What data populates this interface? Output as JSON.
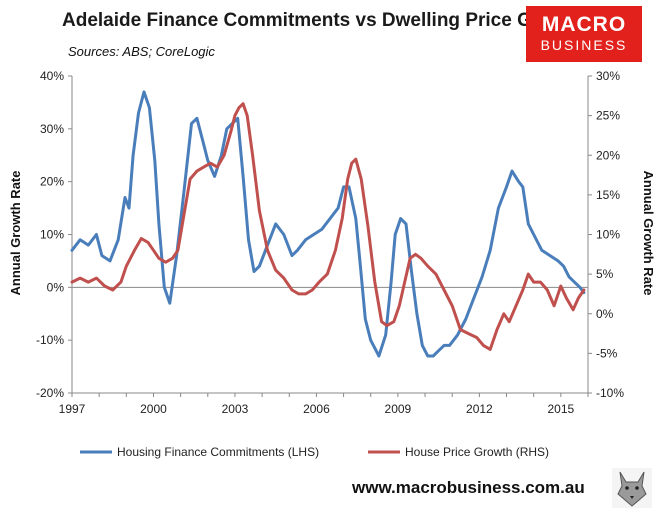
{
  "header": {
    "title": "Adelaide Finance Commitments vs Dwelling Price Growth",
    "subtitle": "Sources: ABS; CoreLogic",
    "logo_line1": "MACRO",
    "logo_line2": "BUSINESS"
  },
  "footer": {
    "url": "www.macrobusiness.com.au"
  },
  "colors": {
    "lhs_series": "#4a7ebb",
    "rhs_series": "#c0504d",
    "axis": "#888888"
  },
  "chart_data": {
    "type": "line",
    "title": "Adelaide Finance Commitments vs Dwelling Price Growth",
    "subtitle": "Sources: ABS; CoreLogic",
    "ylabel_left": "Annual Growth Rate",
    "ylabel_right": "Annual Growth Rate",
    "ylim_left": [
      -20,
      40
    ],
    "ylim_right": [
      -10,
      30
    ],
    "xlim": [
      1997,
      2016
    ],
    "x_ticks": [
      "1997",
      "2000",
      "2003",
      "2006",
      "2009",
      "2012",
      "2015"
    ],
    "y_ticks_left": [
      "40%",
      "30%",
      "20%",
      "10%",
      "0%",
      "-10%",
      "-20%"
    ],
    "y_ticks_right": [
      "30%",
      "25%",
      "20%",
      "15%",
      "10%",
      "5%",
      "0%",
      "-5%",
      "-10%"
    ],
    "grid": false,
    "legend_position": "bottom",
    "series": [
      {
        "name": "Housing Finance Commitments (LHS)",
        "axis": "left",
        "color": "#4a7ebb",
        "x": [
          1997.0,
          1997.3,
          1997.6,
          1997.9,
          1998.1,
          1998.4,
          1998.7,
          1998.95,
          1999.1,
          1999.25,
          1999.45,
          1999.65,
          1999.85,
          2000.05,
          2000.2,
          2000.4,
          2000.6,
          2000.85,
          2001.1,
          2001.4,
          2001.6,
          2001.8,
          2002.0,
          2002.25,
          2002.5,
          2002.7,
          2002.9,
          2003.1,
          2003.3,
          2003.5,
          2003.7,
          2003.9,
          2004.2,
          2004.5,
          2004.8,
          2005.1,
          2005.3,
          2005.6,
          2005.9,
          2006.2,
          2006.5,
          2006.8,
          2007.0,
          2007.2,
          2007.45,
          2007.6,
          2007.8,
          2008.0,
          2008.3,
          2008.55,
          2008.75,
          2008.9,
          2009.1,
          2009.3,
          2009.5,
          2009.7,
          2009.9,
          2010.1,
          2010.3,
          2010.5,
          2010.7,
          2010.9,
          2011.2,
          2011.5,
          2011.8,
          2012.1,
          2012.4,
          2012.7,
          2013.0,
          2013.2,
          2013.45,
          2013.6,
          2013.8,
          2014.0,
          2014.3,
          2014.6,
          2014.9,
          2015.1,
          2015.3,
          2015.5,
          2015.7,
          2015.85
        ],
        "values": [
          7,
          9,
          8,
          10,
          6,
          5,
          9,
          17,
          15,
          25,
          33,
          37,
          34,
          24,
          12,
          0,
          -3,
          6,
          17,
          31,
          32,
          28,
          24,
          21,
          25,
          30,
          31,
          32,
          21,
          9,
          3,
          4,
          8,
          12,
          10,
          6,
          7,
          9,
          10,
          11,
          13,
          15,
          19,
          19,
          13,
          5,
          -6,
          -10,
          -13,
          -9,
          1,
          10,
          13,
          12,
          3,
          -5,
          -11,
          -13,
          -13,
          -12,
          -11,
          -11,
          -9,
          -6,
          -2,
          2,
          7,
          15,
          19,
          22,
          20,
          19,
          12,
          10,
          7,
          6,
          5,
          4,
          2,
          1,
          0,
          -1
        ]
      },
      {
        "name": "House Price Growth (RHS)",
        "axis": "right",
        "color": "#c0504d",
        "x": [
          1997.0,
          1997.3,
          1997.6,
          1997.9,
          1998.2,
          1998.5,
          1998.8,
          1999.0,
          1999.3,
          1999.55,
          1999.8,
          2000.0,
          2000.2,
          2000.45,
          2000.7,
          2000.9,
          2001.1,
          2001.35,
          2001.6,
          2001.85,
          2002.1,
          2002.35,
          2002.6,
          2002.85,
          2003.0,
          2003.15,
          2003.3,
          2003.45,
          2003.65,
          2003.9,
          2004.2,
          2004.5,
          2004.8,
          2005.1,
          2005.35,
          2005.6,
          2005.85,
          2006.1,
          2006.4,
          2006.7,
          2006.95,
          2007.15,
          2007.3,
          2007.45,
          2007.65,
          2007.9,
          2008.15,
          2008.4,
          2008.6,
          2008.85,
          2009.05,
          2009.25,
          2009.45,
          2009.65,
          2009.85,
          2010.1,
          2010.4,
          2010.7,
          2011.0,
          2011.3,
          2011.6,
          2011.9,
          2012.15,
          2012.4,
          2012.65,
          2012.9,
          2013.1,
          2013.35,
          2013.6,
          2013.8,
          2014.0,
          2014.25,
          2014.5,
          2014.75,
          2015.0,
          2015.2,
          2015.45,
          2015.65,
          2015.85
        ],
        "values": [
          4,
          4.5,
          4,
          4.5,
          3.5,
          3,
          4,
          6,
          8,
          9.5,
          9,
          8,
          7,
          6.5,
          7,
          8,
          12,
          17,
          18,
          18.5,
          19,
          18.5,
          20,
          23,
          25,
          26,
          26.5,
          25,
          20,
          13,
          8,
          5.5,
          4.5,
          3,
          2.5,
          2.5,
          3,
          4,
          5,
          8,
          12,
          17,
          19,
          19.5,
          17,
          11,
          4,
          -1,
          -1.5,
          -1,
          1,
          4,
          7,
          7.5,
          7,
          6,
          5,
          3,
          1,
          -2,
          -2.5,
          -3,
          -4,
          -4.5,
          -2,
          0,
          -1,
          1,
          3,
          5,
          4,
          4,
          3,
          1,
          3.5,
          2,
          0.5,
          2,
          3
        ]
      }
    ]
  }
}
